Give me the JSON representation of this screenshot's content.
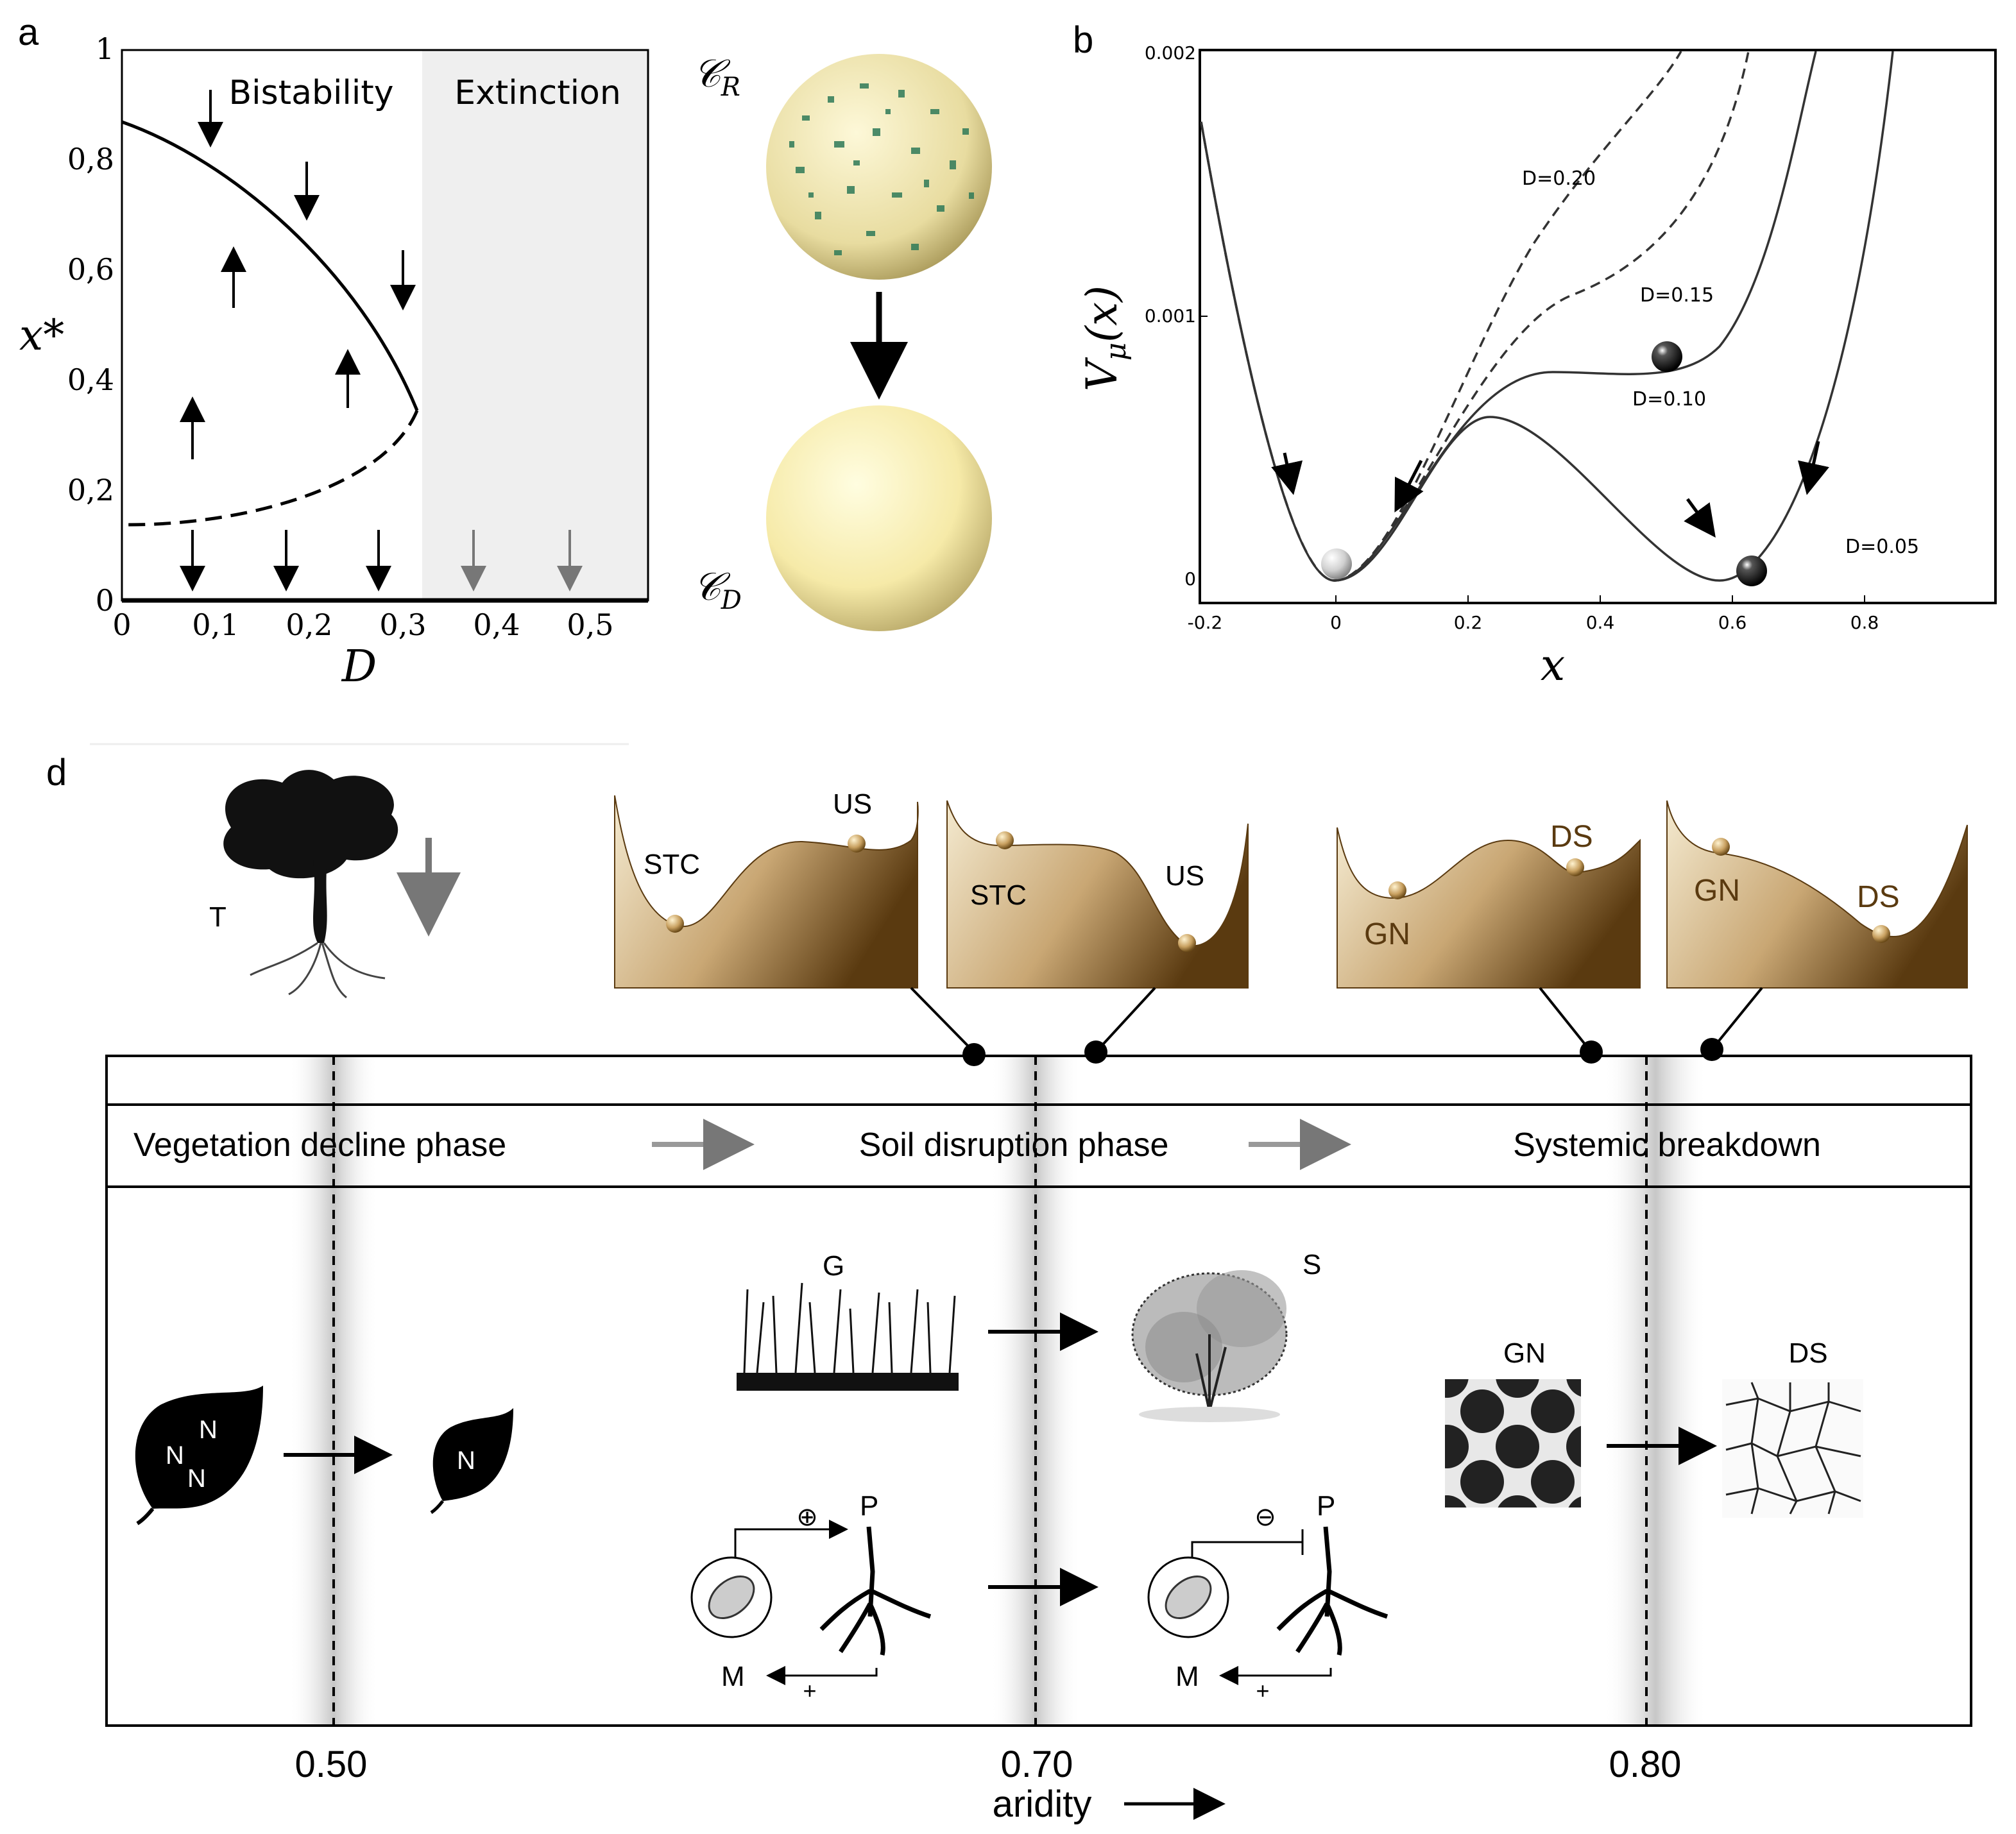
{
  "panel_labels": {
    "a": "a",
    "b": "b",
    "d": "d"
  },
  "panel_a": {
    "y_label": "x*",
    "x_label": "D",
    "y_ticks": [
      "0",
      "0,2",
      "0,4",
      "0,6",
      "0,8",
      "1"
    ],
    "x_ticks": [
      "0",
      "0,1",
      "0,2",
      "0,3",
      "0,4",
      "0,5"
    ],
    "region_bistability": "Bistability",
    "region_extinction": "Extinction",
    "state_top": "𝒞",
    "state_top_sub": "R",
    "state_bottom": "𝒞",
    "state_bottom_sub": "D"
  },
  "panel_b": {
    "y_label": "V",
    "y_label_sub": "μ",
    "y_label_arg": "(x)",
    "x_label": "x",
    "y_ticks": [
      "0",
      "0.001",
      "0.002"
    ],
    "x_ticks": [
      "-0.2",
      "0",
      "0.2",
      "0.4",
      "0.6",
      "0.8"
    ],
    "curve_labels": [
      "D=0.20",
      "D=0.15",
      "D=0.10",
      "D=0.05"
    ]
  },
  "panel_d": {
    "tree_label": "T",
    "landscapes": [
      {
        "labels": [
          "STC",
          "US"
        ]
      },
      {
        "labels": [
          "STC",
          "US"
        ]
      },
      {
        "labels": [
          "GN",
          "DS"
        ]
      },
      {
        "labels": [
          "GN",
          "DS"
        ]
      }
    ],
    "phases": [
      "Vegetation decline phase",
      "Soil disruption phase",
      "Systemic breakdown"
    ],
    "leaf_left_letters": [
      "N",
      "N",
      "N"
    ],
    "leaf_right_letter": "N",
    "grass_label": "G",
    "shrub_label": "S",
    "pattern_left_label": "GN",
    "pattern_right_label": "DS",
    "plant_label": "P",
    "microbe_label": "M",
    "feedback_plus": "⊕",
    "feedback_minus": "⊖",
    "plus": "+",
    "thresholds": [
      "0.50",
      "0.70",
      "0.80"
    ],
    "axis_label": "aridity"
  }
}
